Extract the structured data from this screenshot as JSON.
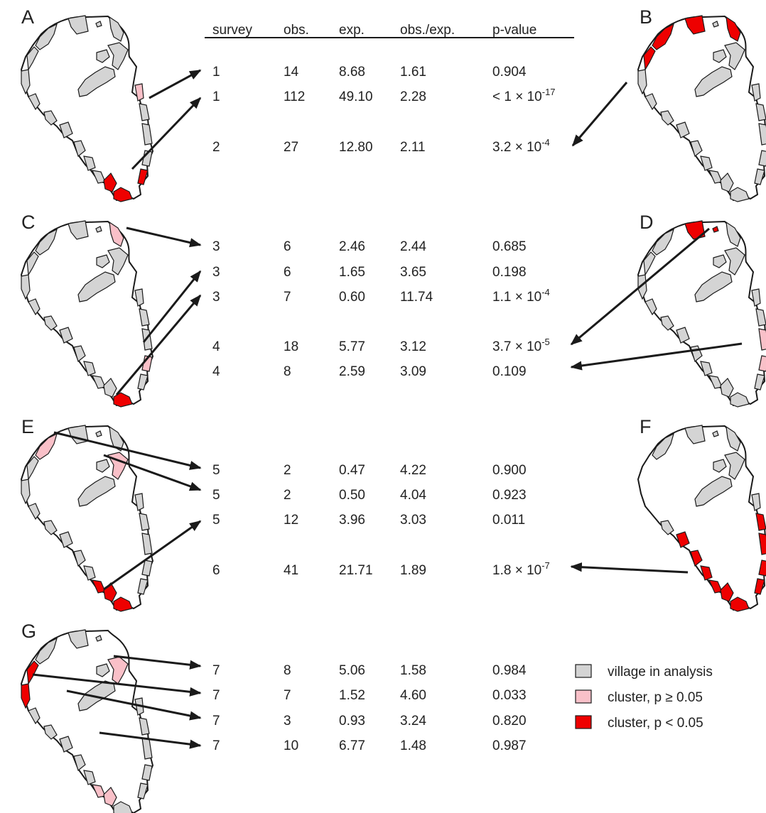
{
  "header": {
    "survey": "survey",
    "obs": "obs.",
    "exp": "exp.",
    "ratio": "obs./exp.",
    "p": "p-value"
  },
  "panels": [
    {
      "letter": "A"
    },
    {
      "letter": "B"
    },
    {
      "letter": "C"
    },
    {
      "letter": "D"
    },
    {
      "letter": "E"
    },
    {
      "letter": "F"
    },
    {
      "letter": "G"
    }
  ],
  "rows": [
    {
      "survey": "1",
      "obs": "14",
      "exp": "8.68",
      "ratio": "1.61",
      "p": "0.904",
      "p_base": "",
      "p_exp": ""
    },
    {
      "survey": "1",
      "obs": "112",
      "exp": "49.10",
      "ratio": "2.28",
      "p": "",
      "p_base": "< 1 × 10",
      "p_exp": "-17"
    },
    {
      "survey": "2",
      "obs": "27",
      "exp": "12.80",
      "ratio": "2.11",
      "p": "",
      "p_base": "3.2 × 10",
      "p_exp": "-4"
    },
    {
      "survey": "3",
      "obs": "6",
      "exp": "2.46",
      "ratio": "2.44",
      "p": "0.685",
      "p_base": "",
      "p_exp": ""
    },
    {
      "survey": "3",
      "obs": "6",
      "exp": "1.65",
      "ratio": "3.65",
      "p": "0.198",
      "p_base": "",
      "p_exp": ""
    },
    {
      "survey": "3",
      "obs": "7",
      "exp": "0.60",
      "ratio": "11.74",
      "p": "",
      "p_base": "1.1 × 10",
      "p_exp": "-4"
    },
    {
      "survey": "4",
      "obs": "18",
      "exp": "5.77",
      "ratio": "3.12",
      "p": "",
      "p_base": "3.7 × 10",
      "p_exp": "-5"
    },
    {
      "survey": "4",
      "obs": "8",
      "exp": "2.59",
      "ratio": "3.09",
      "p": "0.109",
      "p_base": "",
      "p_exp": ""
    },
    {
      "survey": "5",
      "obs": "2",
      "exp": "0.47",
      "ratio": "4.22",
      "p": "0.900",
      "p_base": "",
      "p_exp": ""
    },
    {
      "survey": "5",
      "obs": "2",
      "exp": "0.50",
      "ratio": "4.04",
      "p": "0.923",
      "p_base": "",
      "p_exp": ""
    },
    {
      "survey": "5",
      "obs": "12",
      "exp": "3.96",
      "ratio": "3.03",
      "p": "0.011",
      "p_base": "",
      "p_exp": ""
    },
    {
      "survey": "6",
      "obs": "41",
      "exp": "21.71",
      "ratio": "1.89",
      "p": "",
      "p_base": "1.8 × 10",
      "p_exp": "-7"
    },
    {
      "survey": "7",
      "obs": "8",
      "exp": "5.06",
      "ratio": "1.58",
      "p": "0.984",
      "p_base": "",
      "p_exp": ""
    },
    {
      "survey": "7",
      "obs": "7",
      "exp": "1.52",
      "ratio": "4.60",
      "p": "0.033",
      "p_base": "",
      "p_exp": ""
    },
    {
      "survey": "7",
      "obs": "3",
      "exp": "0.93",
      "ratio": "3.24",
      "p": "0.820",
      "p_base": "",
      "p_exp": ""
    },
    {
      "survey": "7",
      "obs": "10",
      "exp": "6.77",
      "ratio": "1.48",
      "p": "0.987",
      "p_base": "",
      "p_exp": ""
    }
  ],
  "legend": {
    "village": "village in analysis",
    "cluster_ns": "cluster, p ≥ 0.05",
    "cluster_sig": "cluster, p < 0.05"
  },
  "colors": {
    "village": "#d4d4d4",
    "cluster_ns": "#f9c0c8",
    "cluster_sig": "#ee0000"
  }
}
